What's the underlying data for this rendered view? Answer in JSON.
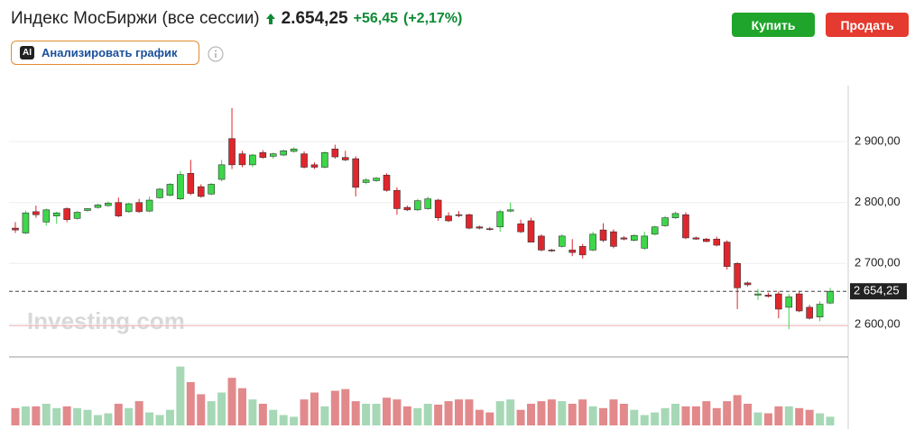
{
  "header": {
    "title": "Индекс МосБиржи (все сессии)",
    "price": "2.654,25",
    "change": "+56,45",
    "change_pct": "(+2,17%)",
    "ai_badge": "AI",
    "analyze": "Анализировать график",
    "buy": "Купить",
    "sell": "Продать"
  },
  "chart_data": {
    "type": "candlestick",
    "watermark": "Investing.com",
    "ohlc": [
      [
        2758,
        2768,
        2750,
        2755
      ],
      [
        2750,
        2787,
        2748,
        2783
      ],
      [
        2785,
        2795,
        2775,
        2780
      ],
      [
        2768,
        2790,
        2762,
        2788
      ],
      [
        2778,
        2785,
        2765,
        2783
      ],
      [
        2790,
        2792,
        2768,
        2772
      ],
      [
        2774,
        2786,
        2772,
        2784
      ],
      [
        2787,
        2791,
        2785,
        2790
      ],
      [
        2792,
        2798,
        2790,
        2796
      ],
      [
        2795,
        2802,
        2793,
        2799
      ],
      [
        2800,
        2808,
        2776,
        2778
      ],
      [
        2785,
        2800,
        2783,
        2798
      ],
      [
        2800,
        2806,
        2783,
        2785
      ],
      [
        2786,
        2810,
        2784,
        2804
      ],
      [
        2808,
        2824,
        2806,
        2822
      ],
      [
        2812,
        2832,
        2810,
        2830
      ],
      [
        2806,
        2852,
        2804,
        2846
      ],
      [
        2848,
        2870,
        2812,
        2815
      ],
      [
        2826,
        2830,
        2808,
        2810
      ],
      [
        2814,
        2832,
        2812,
        2830
      ],
      [
        2838,
        2870,
        2835,
        2862
      ],
      [
        2905,
        2955,
        2855,
        2862
      ],
      [
        2880,
        2885,
        2858,
        2862
      ],
      [
        2862,
        2880,
        2858,
        2878
      ],
      [
        2882,
        2886,
        2872,
        2874
      ],
      [
        2876,
        2882,
        2872,
        2880
      ],
      [
        2878,
        2887,
        2876,
        2885
      ],
      [
        2884,
        2891,
        2882,
        2888
      ],
      [
        2880,
        2884,
        2856,
        2858
      ],
      [
        2862,
        2866,
        2855,
        2858
      ],
      [
        2858,
        2884,
        2856,
        2882
      ],
      [
        2888,
        2895,
        2872,
        2875
      ],
      [
        2874,
        2885,
        2868,
        2870
      ],
      [
        2872,
        2876,
        2810,
        2825
      ],
      [
        2833,
        2840,
        2830,
        2837
      ],
      [
        2836,
        2842,
        2834,
        2840
      ],
      [
        2845,
        2848,
        2818,
        2820
      ],
      [
        2820,
        2825,
        2780,
        2790
      ],
      [
        2792,
        2795,
        2786,
        2788
      ],
      [
        2788,
        2806,
        2786,
        2803
      ],
      [
        2790,
        2810,
        2788,
        2806
      ],
      [
        2804,
        2806,
        2770,
        2775
      ],
      [
        2778,
        2784,
        2768,
        2770
      ],
      [
        2780,
        2786,
        2776,
        2779
      ],
      [
        2780,
        2782,
        2756,
        2758
      ],
      [
        2760,
        2762,
        2756,
        2758
      ],
      [
        2757,
        2760,
        2754,
        2756
      ],
      [
        2760,
        2788,
        2752,
        2785
      ],
      [
        2786,
        2800,
        2784,
        2788
      ],
      [
        2765,
        2772,
        2750,
        2752
      ],
      [
        2770,
        2775,
        2735,
        2735
      ],
      [
        2745,
        2748,
        2720,
        2722
      ],
      [
        2722,
        2724,
        2719,
        2721
      ],
      [
        2728,
        2748,
        2726,
        2745
      ],
      [
        2722,
        2740,
        2712,
        2718
      ],
      [
        2728,
        2732,
        2708,
        2714
      ],
      [
        2722,
        2752,
        2720,
        2748
      ],
      [
        2755,
        2766,
        2735,
        2738
      ],
      [
        2752,
        2756,
        2725,
        2728
      ],
      [
        2742,
        2745,
        2738,
        2740
      ],
      [
        2738,
        2748,
        2736,
        2746
      ],
      [
        2725,
        2752,
        2722,
        2745
      ],
      [
        2748,
        2762,
        2746,
        2760
      ],
      [
        2762,
        2778,
        2760,
        2775
      ],
      [
        2775,
        2785,
        2773,
        2782
      ],
      [
        2780,
        2784,
        2740,
        2742
      ],
      [
        2742,
        2744,
        2739,
        2740
      ],
      [
        2740,
        2742,
        2735,
        2736
      ],
      [
        2740,
        2744,
        2728,
        2730
      ],
      [
        2735,
        2738,
        2690,
        2695
      ],
      [
        2700,
        2702,
        2625,
        2660
      ],
      [
        2668,
        2670,
        2662,
        2665
      ],
      [
        2648,
        2658,
        2640,
        2650
      ],
      [
        2648,
        2652,
        2644,
        2646
      ],
      [
        2650,
        2654,
        2610,
        2625
      ],
      [
        2628,
        2650,
        2592,
        2645
      ],
      [
        2650,
        2655,
        2620,
        2622
      ],
      [
        2628,
        2632,
        2608,
        2610
      ],
      [
        2612,
        2638,
        2605,
        2633
      ],
      [
        2635,
        2660,
        2633,
        2654.25
      ]
    ],
    "volume": [
      20,
      22,
      22,
      25,
      20,
      22,
      20,
      18,
      12,
      14,
      25,
      20,
      28,
      15,
      12,
      18,
      68,
      50,
      36,
      28,
      38,
      55,
      43,
      30,
      25,
      18,
      12,
      10,
      30,
      38,
      22,
      40,
      42,
      28,
      25,
      25,
      32,
      30,
      22,
      20,
      25,
      24,
      28,
      30,
      30,
      18,
      15,
      28,
      30,
      18,
      25,
      28,
      30,
      28,
      25,
      30,
      22,
      20,
      30,
      25,
      18,
      12,
      15,
      20,
      25,
      22,
      22,
      28,
      20,
      28,
      35,
      25,
      15,
      14,
      22,
      22,
      20,
      18,
      14,
      10
    ],
    "volume_ylim": [
      0,
      75
    ],
    "up_color": "#3ed64a",
    "down_color": "#e0262d",
    "up_volume_color": "#a6d8b6",
    "down_volume_color": "#e2898c",
    "ylim": [
      2548,
      2992
    ],
    "yticks": [
      {
        "value": 2600,
        "label": "2 600,00"
      },
      {
        "value": 2700,
        "label": "2 700,00"
      },
      {
        "value": 2800,
        "label": "2 800,00"
      },
      {
        "value": 2900,
        "label": "2 900,00"
      }
    ],
    "grid": true,
    "last_price": {
      "value": 2654.25,
      "label": "2 654,25"
    },
    "prev_close": 2597.8
  }
}
